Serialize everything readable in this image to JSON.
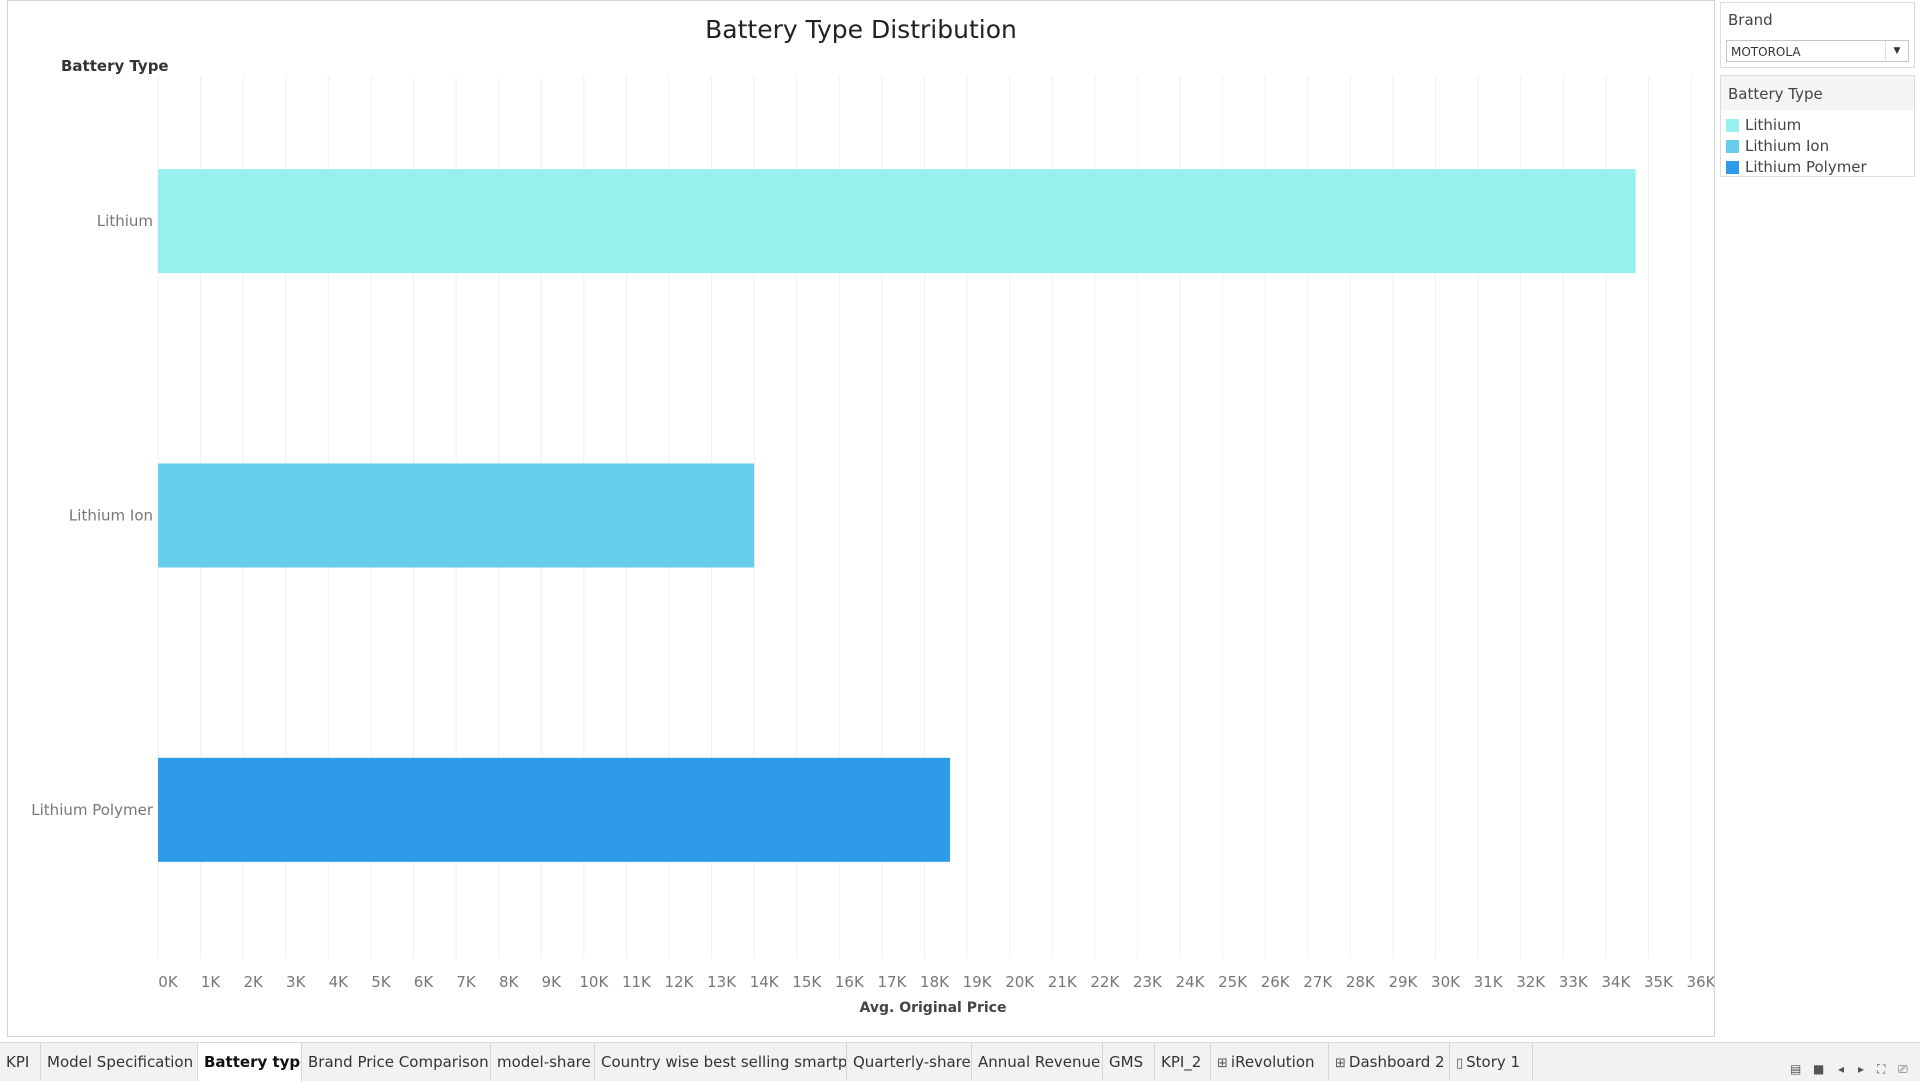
{
  "sheet": {
    "title": "Battery Type Distribution"
  },
  "chart_data": {
    "type": "bar",
    "orientation": "horizontal",
    "title": "Battery Type Distribution",
    "ylabel": "Battery Type",
    "xlabel": "Avg. Original Price",
    "categories": [
      "Lithium",
      "Lithium Ion",
      "Lithium Polymer"
    ],
    "values": [
      34700,
      14000,
      18600
    ],
    "colors": [
      "#98f0ec",
      "#66cdeb",
      "#2e9be8"
    ],
    "xlim": [
      0,
      36000
    ],
    "xticks": [
      "0K",
      "1K",
      "2K",
      "3K",
      "4K",
      "5K",
      "6K",
      "7K",
      "8K",
      "9K",
      "10K",
      "11K",
      "12K",
      "13K",
      "14K",
      "15K",
      "16K",
      "17K",
      "18K",
      "19K",
      "20K",
      "21K",
      "22K",
      "23K",
      "24K",
      "25K",
      "26K",
      "27K",
      "28K",
      "29K",
      "30K",
      "31K",
      "32K",
      "33K",
      "34K",
      "35K",
      "36K"
    ],
    "grid": "vertical",
    "legend": "right"
  },
  "filter": {
    "title": "Brand",
    "value": "MOTOROLA"
  },
  "legend": {
    "title": "Battery Type",
    "items": [
      {
        "label": "Lithium",
        "color": "#98f0ec"
      },
      {
        "label": "Lithium Ion",
        "color": "#66cdeb"
      },
      {
        "label": "Lithium Polymer",
        "color": "#2e9be8"
      }
    ]
  },
  "tabs": [
    {
      "label": "KPI",
      "icon": ""
    },
    {
      "label": "Model Specification",
      "icon": ""
    },
    {
      "label": "Battery type",
      "icon": "",
      "active": true
    },
    {
      "label": "Brand Price Comparison",
      "icon": ""
    },
    {
      "label": "model-share",
      "icon": ""
    },
    {
      "label": "Country wise best selling smartp...",
      "icon": ""
    },
    {
      "label": "Quarterly-share",
      "icon": ""
    },
    {
      "label": "Annual Revenue",
      "icon": ""
    },
    {
      "label": "GMS",
      "icon": ""
    },
    {
      "label": "KPI_2",
      "icon": ""
    },
    {
      "label": "iRevolution",
      "icon": "dashboard-icon"
    },
    {
      "label": "Dashboard 2",
      "icon": "dashboard-icon"
    },
    {
      "label": "Story 1",
      "icon": "story-icon"
    }
  ]
}
